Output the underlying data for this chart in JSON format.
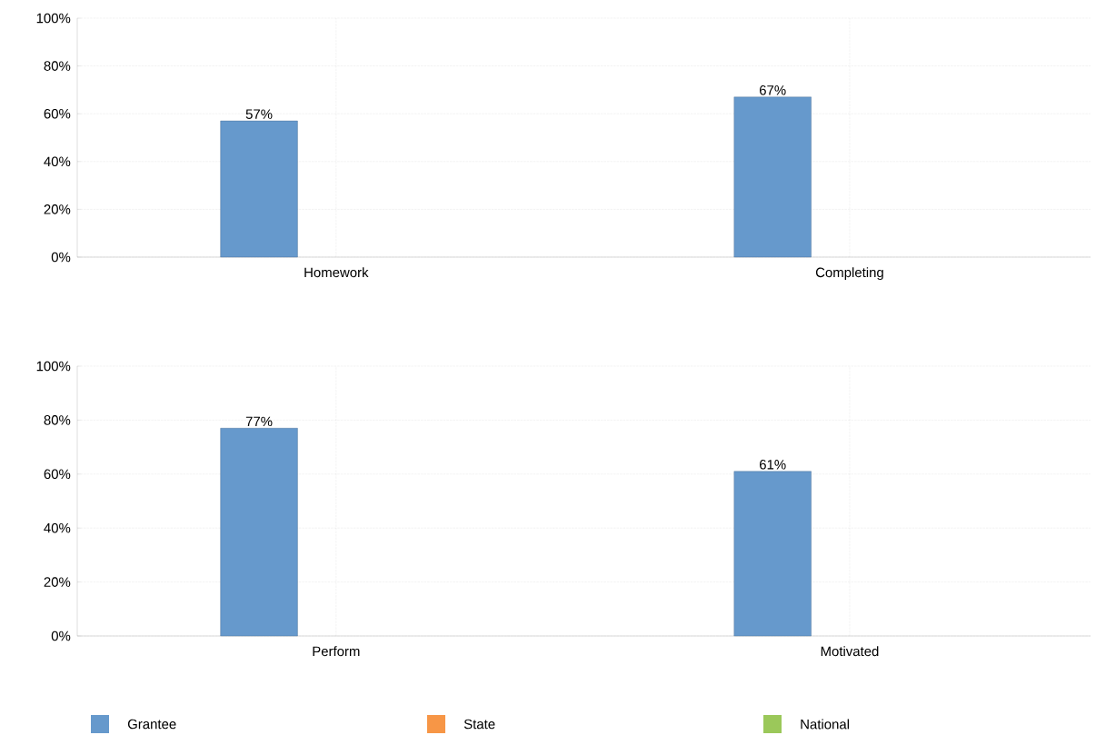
{
  "chart_data": [
    {
      "type": "bar",
      "categories": [
        "Homework",
        "Completing"
      ],
      "series": [
        {
          "color": "#6699cc",
          "values": [
            57,
            67
          ],
          "value_labels": [
            "57%",
            "67%"
          ]
        }
      ],
      "ylim": [
        0,
        100
      ],
      "yticks": [
        {
          "value": 0,
          "label": "0%"
        },
        {
          "value": 20,
          "label": "20%"
        },
        {
          "value": 40,
          "label": "40%"
        },
        {
          "value": 60,
          "label": "60%"
        },
        {
          "value": 80,
          "label": "80%"
        },
        {
          "value": 100,
          "label": "100%"
        }
      ],
      "grid": true
    },
    {
      "type": "bar",
      "categories": [
        "Perform",
        "Motivated"
      ],
      "series": [
        {
          "name": "Grantee",
          "color": "#6699cc",
          "values": [
            77,
            61
          ],
          "value_labels": [
            "77%",
            "61%"
          ]
        },
        {
          "name": "State",
          "color": "#f79646",
          "values": [
            null,
            null
          ]
        },
        {
          "name": "National",
          "color": "#9bc85a",
          "values": [
            null,
            null
          ]
        }
      ],
      "ylim": [
        0,
        100
      ],
      "yticks": [
        {
          "value": 0,
          "label": "0%"
        },
        {
          "value": 20,
          "label": "20%"
        },
        {
          "value": 40,
          "label": "40%"
        },
        {
          "value": 60,
          "label": "60%"
        },
        {
          "value": 80,
          "label": "80%"
        },
        {
          "value": 100,
          "label": "100%"
        }
      ],
      "grid": true,
      "legend": "bottom"
    }
  ]
}
